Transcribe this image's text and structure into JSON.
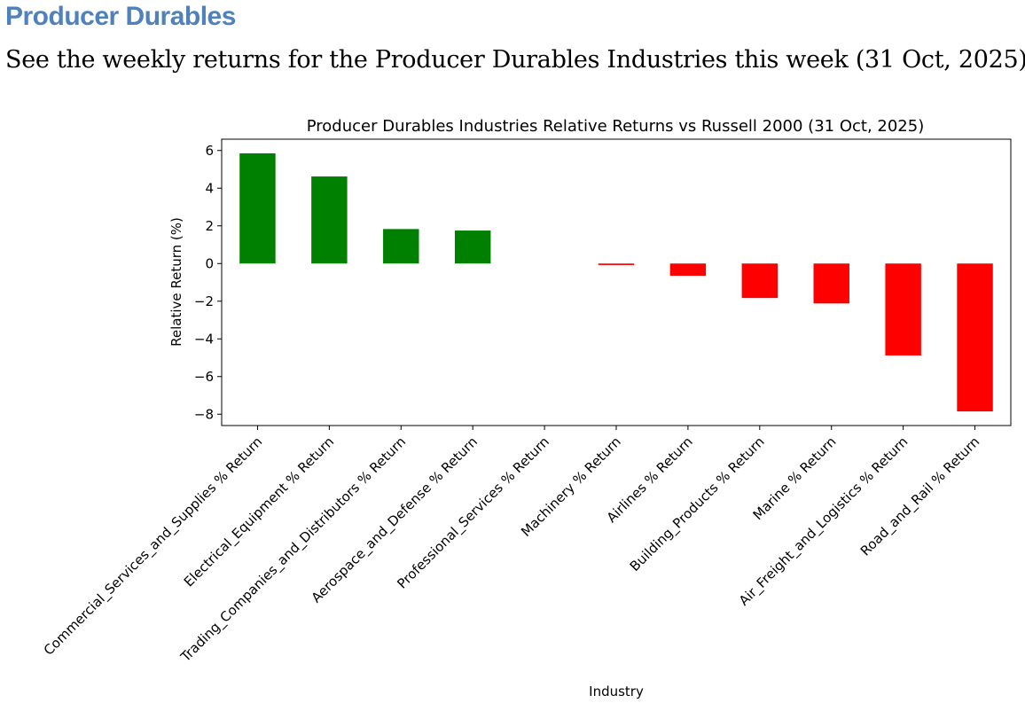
{
  "section": {
    "heading": "Producer Durables",
    "heading_color": "#4f81bd",
    "intro": "See the weekly returns for the Producer Durables Industries this week (31 Oct, 2025):"
  },
  "chart_data": {
    "type": "bar",
    "title": "Producer Durables Industries Relative Returns vs Russell 2000 (31 Oct, 2025)",
    "xlabel": "Industry",
    "ylabel": "Relative Return (%)",
    "ylim": [
      -8.6,
      6.6
    ],
    "yticks": [
      6,
      4,
      2,
      0,
      -2,
      -4,
      -6,
      -8
    ],
    "ytick_labels": [
      "6",
      "4",
      "2",
      "0",
      "−2",
      "−4",
      "−6",
      "−8"
    ],
    "grid": false,
    "positive_color": "#008000",
    "negative_color": "#ff0000",
    "categories": [
      "Commercial_Services_and_Supplies % Return",
      "Electrical_Equipment % Return",
      "Trading_Companies_and_Distributors % Return",
      "Aerospace_and_Defense % Return",
      "Professional_Services % Return",
      "Machinery % Return",
      "Airlines % Return",
      "Building_Products % Return",
      "Marine % Return",
      "Air_Freight_and_Logistics % Return",
      "Road_and_Rail % Return"
    ],
    "values": [
      5.85,
      4.62,
      1.83,
      1.75,
      0.0,
      -0.08,
      -0.65,
      -1.83,
      -2.12,
      -4.88,
      -7.85
    ]
  }
}
